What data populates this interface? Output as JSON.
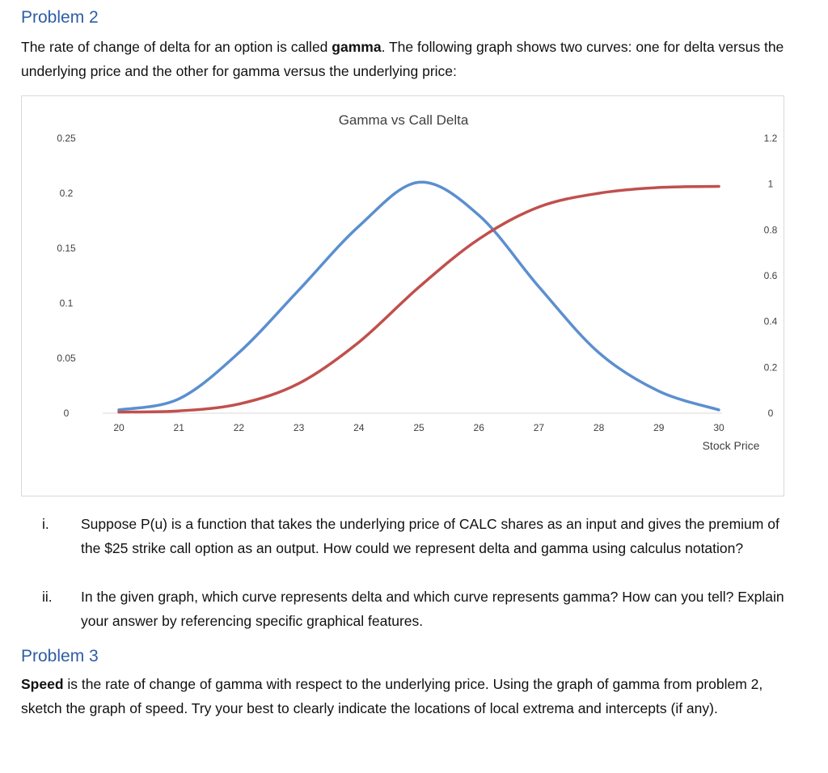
{
  "problem2": {
    "heading": "Problem 2",
    "intro_before": "The rate of change of delta for an option is called ",
    "intro_bold": "gamma",
    "intro_after": ".  The following graph shows two curves: one for delta versus the underlying price and the other for gamma versus the underlying price:"
  },
  "chart_data": {
    "type": "line",
    "title": "Gamma vs Call Delta",
    "xlabel": "Stock Price",
    "ylabel": "",
    "x": [
      20,
      21,
      22,
      23,
      24,
      25,
      26,
      27,
      28,
      29,
      30
    ],
    "xlim": [
      20,
      30
    ],
    "y_left_ticks": [
      "0.25",
      "0.2",
      "0.15",
      "0.1",
      "0.05",
      "0"
    ],
    "y_left_lim": [
      0,
      0.25
    ],
    "y_right_ticks": [
      "1.2",
      "1",
      "0.8",
      "0.6",
      "0.4",
      "0.2",
      "0"
    ],
    "y_right_lim": [
      0,
      1.2
    ],
    "grid": false,
    "series": [
      {
        "axis": "left",
        "color": "#5b8fcf",
        "values": [
          0.003,
          0.013,
          0.055,
          0.112,
          0.17,
          0.21,
          0.18,
          0.115,
          0.055,
          0.02,
          0.003
        ]
      },
      {
        "axis": "right",
        "color": "#c0504d",
        "values": [
          0.005,
          0.01,
          0.04,
          0.13,
          0.31,
          0.55,
          0.76,
          0.9,
          0.96,
          0.985,
          0.99
        ]
      }
    ]
  },
  "questions": [
    {
      "num": "i.",
      "text": "Suppose P(u) is a function that takes the underlying price of CALC shares as an input and gives the premium of the $25 strike call option as an output. How could we represent delta and gamma using calculus notation?"
    },
    {
      "num": "ii.",
      "text": "In the given graph, which curve represents delta and which curve represents gamma?  How can you tell?  Explain your answer by referencing specific graphical features."
    }
  ],
  "problem3": {
    "heading": "Problem 3",
    "body_bold": "Speed",
    "body_after": " is the rate of change of gamma with respect to the underlying price.  Using the graph of gamma from problem 2, sketch the graph of speed.  Try your best to clearly indicate the locations of local extrema and intercepts (if any)."
  }
}
